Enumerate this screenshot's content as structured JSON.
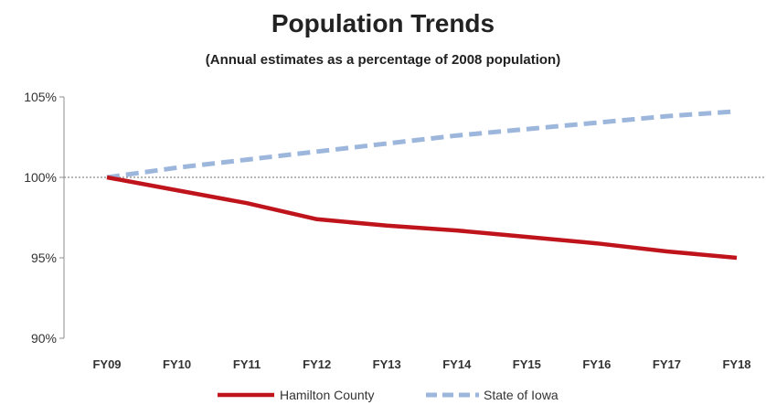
{
  "chart_data": {
    "type": "line",
    "title": "Population Trends",
    "subtitle": "(Annual estimates as a percentage of 2008 population)",
    "xlabel": "",
    "ylabel": "",
    "categories": [
      "FY09",
      "FY10",
      "FY11",
      "FY12",
      "FY13",
      "FY14",
      "FY15",
      "FY16",
      "FY17",
      "FY18"
    ],
    "ylim": [
      90,
      105
    ],
    "yticks": [
      90,
      95,
      100,
      105
    ],
    "ytick_labels": [
      "90%",
      "95%",
      "100%",
      "105%"
    ],
    "reference_line": 100,
    "legend_position": "bottom",
    "grid": false,
    "series": [
      {
        "name": "Hamilton County",
        "color": "#c0141c",
        "style": "solid",
        "values": [
          100.0,
          99.2,
          98.4,
          97.4,
          97.0,
          96.7,
          96.3,
          95.9,
          95.4,
          95.0
        ]
      },
      {
        "name": "State of Iowa",
        "color": "#9db7dc",
        "style": "dashed",
        "values": [
          100.0,
          100.6,
          101.1,
          101.6,
          102.1,
          102.6,
          103.0,
          103.4,
          103.8,
          104.1
        ]
      }
    ]
  }
}
